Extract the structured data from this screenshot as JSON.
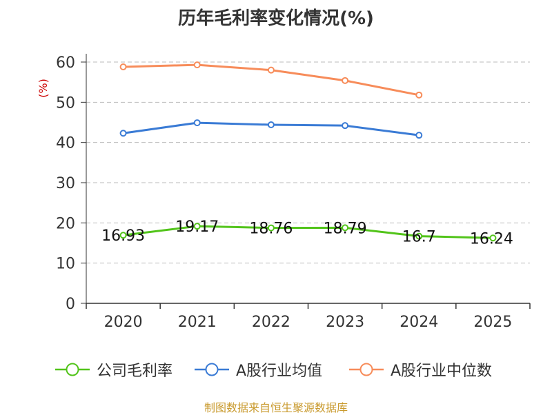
{
  "chart_data": {
    "type": "line",
    "title": "历年毛利率变化情况(%)",
    "ylabel": "(%)",
    "xlabel": "",
    "ylim": [
      0,
      60
    ],
    "yticks": [
      0,
      10,
      20,
      30,
      40,
      50,
      60
    ],
    "categories": [
      "2020",
      "2021",
      "2022",
      "2023",
      "2024",
      "2025"
    ],
    "grid": true,
    "legend_position": "bottom",
    "series": [
      {
        "name": "公司毛利率",
        "color": "#52c41a",
        "values": [
          16.93,
          19.17,
          18.76,
          18.79,
          16.7,
          16.24
        ],
        "labels": [
          "16.93",
          "19.17",
          "18.76",
          "18.79",
          "16.7",
          "16.24"
        ]
      },
      {
        "name": "A股行业均值",
        "color": "#3a7bd5",
        "values": [
          42.3,
          44.9,
          44.4,
          44.2,
          41.8,
          null
        ]
      },
      {
        "name": "A股行业中位数",
        "color": "#f78c5a",
        "values": [
          58.8,
          59.3,
          58.0,
          55.4,
          51.8,
          null
        ]
      }
    ]
  },
  "source": "制图数据来自恒生聚源数据库"
}
